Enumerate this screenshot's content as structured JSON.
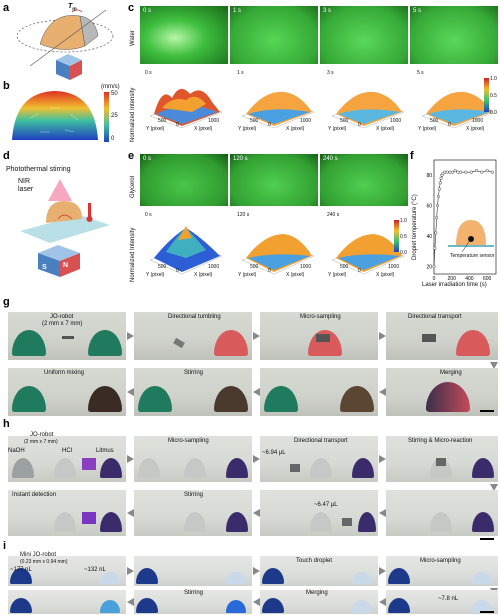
{
  "panels": {
    "a": {
      "label": "a",
      "torque": "T",
      "torque_sub": "m"
    },
    "b": {
      "label": "b",
      "unit": "(mm/s)",
      "ticks": [
        "50",
        "25",
        "0"
      ]
    },
    "c": {
      "label": "c",
      "row_label": "Water",
      "times": [
        "0 s",
        "1 s",
        "3 s",
        "5 s"
      ],
      "z_label": "Normalized Intensity",
      "cbar_ticks": [
        "1.0",
        "0.5",
        "0.0"
      ],
      "x_axis": "X (pixel)",
      "y_axis": "Y (pixel)",
      "tick_1000": "1000",
      "tick_500": "500",
      "tick_0": "0"
    },
    "d": {
      "label": "d",
      "title": "Photothermal stirring",
      "laser": "NIR laser",
      "magnet_s": "S",
      "magnet_n": "N"
    },
    "e": {
      "label": "e",
      "row_label": "Glycerol",
      "times": [
        "0 s",
        "120 s",
        "240 s"
      ],
      "z_label": "Normalized Intensity",
      "cbar_ticks": [
        "1.0",
        "0.5",
        "0.0"
      ],
      "x_axis": "X (pixel)",
      "y_axis": "Y (pixel)",
      "tick_1000": "1000",
      "tick_500": "500",
      "tick_0": "0"
    },
    "f": {
      "label": "f",
      "ylabel": "Droplet temperature (°C)",
      "xlabel": "Laser irradiation time (s)",
      "sensor": "Temperature sensor",
      "yticks": [
        "80",
        "60",
        "40",
        "20"
      ],
      "xticks": [
        "0",
        "200",
        "400",
        "600"
      ]
    },
    "g": {
      "label": "g",
      "robot": "JO-robot",
      "size": "(2 mm x 7 mm)",
      "steps_top": [
        "Directional tumbling",
        "Micro-sampling",
        "Directional transport"
      ],
      "steps_bottom": [
        "Uniform mixing",
        "Stirring",
        "Merging"
      ]
    },
    "h": {
      "label": "h",
      "robot": "JO-robot",
      "size": "(2 mm x 7 mm)",
      "naoh": "NaOH",
      "hcl": "HCl",
      "litmus": "Litmus",
      "steps_top": [
        "Micro-sampling",
        "Directional transport",
        "Stirring & Micro-reaction"
      ],
      "steps_bottom": [
        "Instant detection",
        "Stirring"
      ],
      "vol1": "~6.94 μL",
      "vol2": "~6.47 μL"
    },
    "i": {
      "label": "i",
      "robot": "Mini JO-robot",
      "size": "(0.23 mm x 0.94 mm)",
      "vol_left": "~177 nL",
      "vol_right": "~132 nL",
      "steps_top": [
        "Touch droplet",
        "Micro-sampling"
      ],
      "steps_bottom": [
        "Stirring",
        "Merging"
      ],
      "vol3": "~7.8 nL"
    }
  },
  "chart_data": {
    "type": "scatter",
    "xlabel": "Laser irradiation time (s)",
    "ylabel": "Droplet temperature (°C)",
    "xlim": [
      0,
      700
    ],
    "ylim": [
      15,
      90
    ],
    "x": [
      0,
      10,
      20,
      30,
      40,
      50,
      60,
      70,
      80,
      90,
      100,
      120,
      150,
      180,
      210,
      240,
      270,
      300,
      360,
      420,
      480,
      540,
      600,
      660
    ],
    "y": [
      20,
      32,
      42,
      52,
      60,
      66,
      71,
      75,
      78,
      80,
      81,
      82,
      82,
      82,
      82,
      83,
      82,
      82,
      82,
      82,
      83,
      82,
      83,
      82
    ]
  }
}
